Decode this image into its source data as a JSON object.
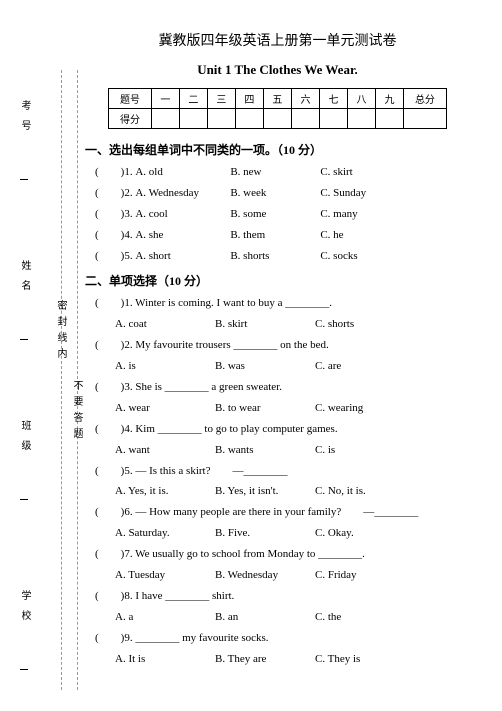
{
  "header": {
    "title_cn": "冀教版四年级英语上册第一单元测试卷",
    "title_en": "Unit 1 The Clothes We Wear."
  },
  "score_table": {
    "row1": [
      "题号",
      "一",
      "二",
      "三",
      "四",
      "五",
      "六",
      "七",
      "八",
      "九",
      "总分"
    ],
    "row2_label": "得分"
  },
  "section1": {
    "heading": "一、选出每组单词中不同类的一项。（10 分）",
    "items": [
      {
        "n": "1",
        "a": "A. old",
        "b": "B. new",
        "c": "C. skirt"
      },
      {
        "n": "2",
        "a": "A. Wednesday",
        "b": "B. week",
        "c": "C. Sunday"
      },
      {
        "n": "3",
        "a": "A. cool",
        "b": "B. some",
        "c": "C. many"
      },
      {
        "n": "4",
        "a": "A. she",
        "b": "B. them",
        "c": "C. he"
      },
      {
        "n": "5",
        "a": "A. short",
        "b": "B. shorts",
        "c": "C. socks"
      }
    ]
  },
  "section2": {
    "heading": "二、单项选择（10 分）",
    "items": [
      {
        "n": "1",
        "stem": "Winter is coming. I want to buy a ________.",
        "a": "A. coat",
        "b": "B. skirt",
        "c": "C. shorts"
      },
      {
        "n": "2",
        "stem": "My favourite trousers ________ on the bed.",
        "a": "A. is",
        "b": "B. was",
        "c": "C. are"
      },
      {
        "n": "3",
        "stem": "She is ________ a green sweater.",
        "a": "A. wear",
        "b": "B. to wear",
        "c": "C. wearing"
      },
      {
        "n": "4",
        "stem": "Kim ________ to go to play computer games.",
        "a": "A. want",
        "b": "B. wants",
        "c": "C. is"
      },
      {
        "n": "5",
        "stem": "— Is this a skirt?　　—________",
        "a": "A. Yes, it is.",
        "b": "B. Yes, it isn't.",
        "c": "C. No, it is."
      },
      {
        "n": "6",
        "stem": "— How many people are there in your family?　　—________",
        "a": "A. Saturday.",
        "b": "B. Five.",
        "c": "C. Okay."
      },
      {
        "n": "7",
        "stem": "We usually go to school from Monday to ________.",
        "a": "A. Tuesday",
        "b": "B. Wednesday",
        "c": "C. Friday"
      },
      {
        "n": "8",
        "stem": "I have ________ shirt.",
        "a": "A. a",
        "b": "B. an",
        "c": "C. the"
      },
      {
        "n": "9",
        "stem": "________ my favourite socks.",
        "a": "A. It is",
        "b": "B. They are",
        "c": "C. They is"
      }
    ]
  },
  "sidebar": {
    "labels": [
      "学校",
      "班级",
      "姓名",
      "考号"
    ],
    "gutter1": "密封线内",
    "gutter2": "不要答题"
  },
  "colors": {
    "text": "#000000",
    "bg": "#ffffff",
    "dash": "#999999"
  }
}
